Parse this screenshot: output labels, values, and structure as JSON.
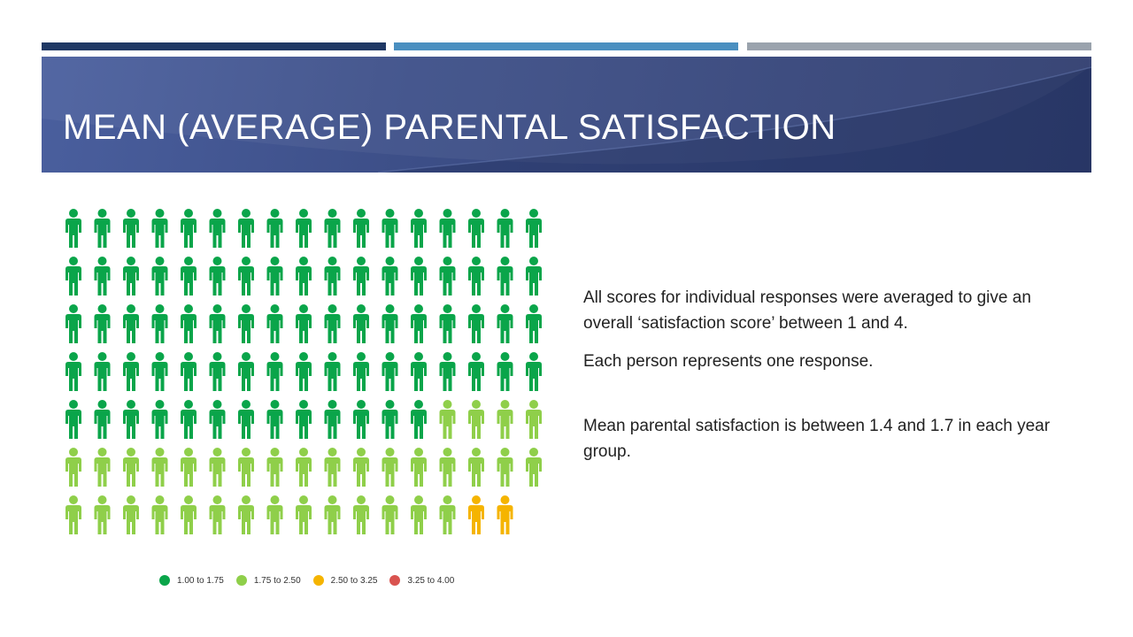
{
  "slide": {
    "title": "MEAN (AVERAGE) PARENTAL SATISFACTION",
    "paragraphs": [
      "All scores for individual responses were averaged to give an overall ‘satisfaction score’ between 1 and 4.",
      "Each person represents one response.",
      "Mean parental satisfaction is between 1.4 and 1.7 in each year group."
    ]
  },
  "theme": {
    "accent_1": "#1f3864",
    "accent_2": "#4a8fc0",
    "accent_3": "#9aa3ad"
  },
  "chart_data": {
    "type": "pictogram",
    "icon": "person-icon",
    "series": [
      {
        "name": "1.00 to 1.75",
        "count": 81,
        "color": "#0aa54a"
      },
      {
        "name": "1.75 to 2.50",
        "count": 35,
        "color": "#8fcf4a"
      },
      {
        "name": "2.50 to 3.25",
        "count": 2,
        "color": "#f5b400"
      },
      {
        "name": "3.25 to 4.00",
        "count": 0,
        "color": "#d9534f"
      }
    ],
    "legend_position": "bottom"
  }
}
